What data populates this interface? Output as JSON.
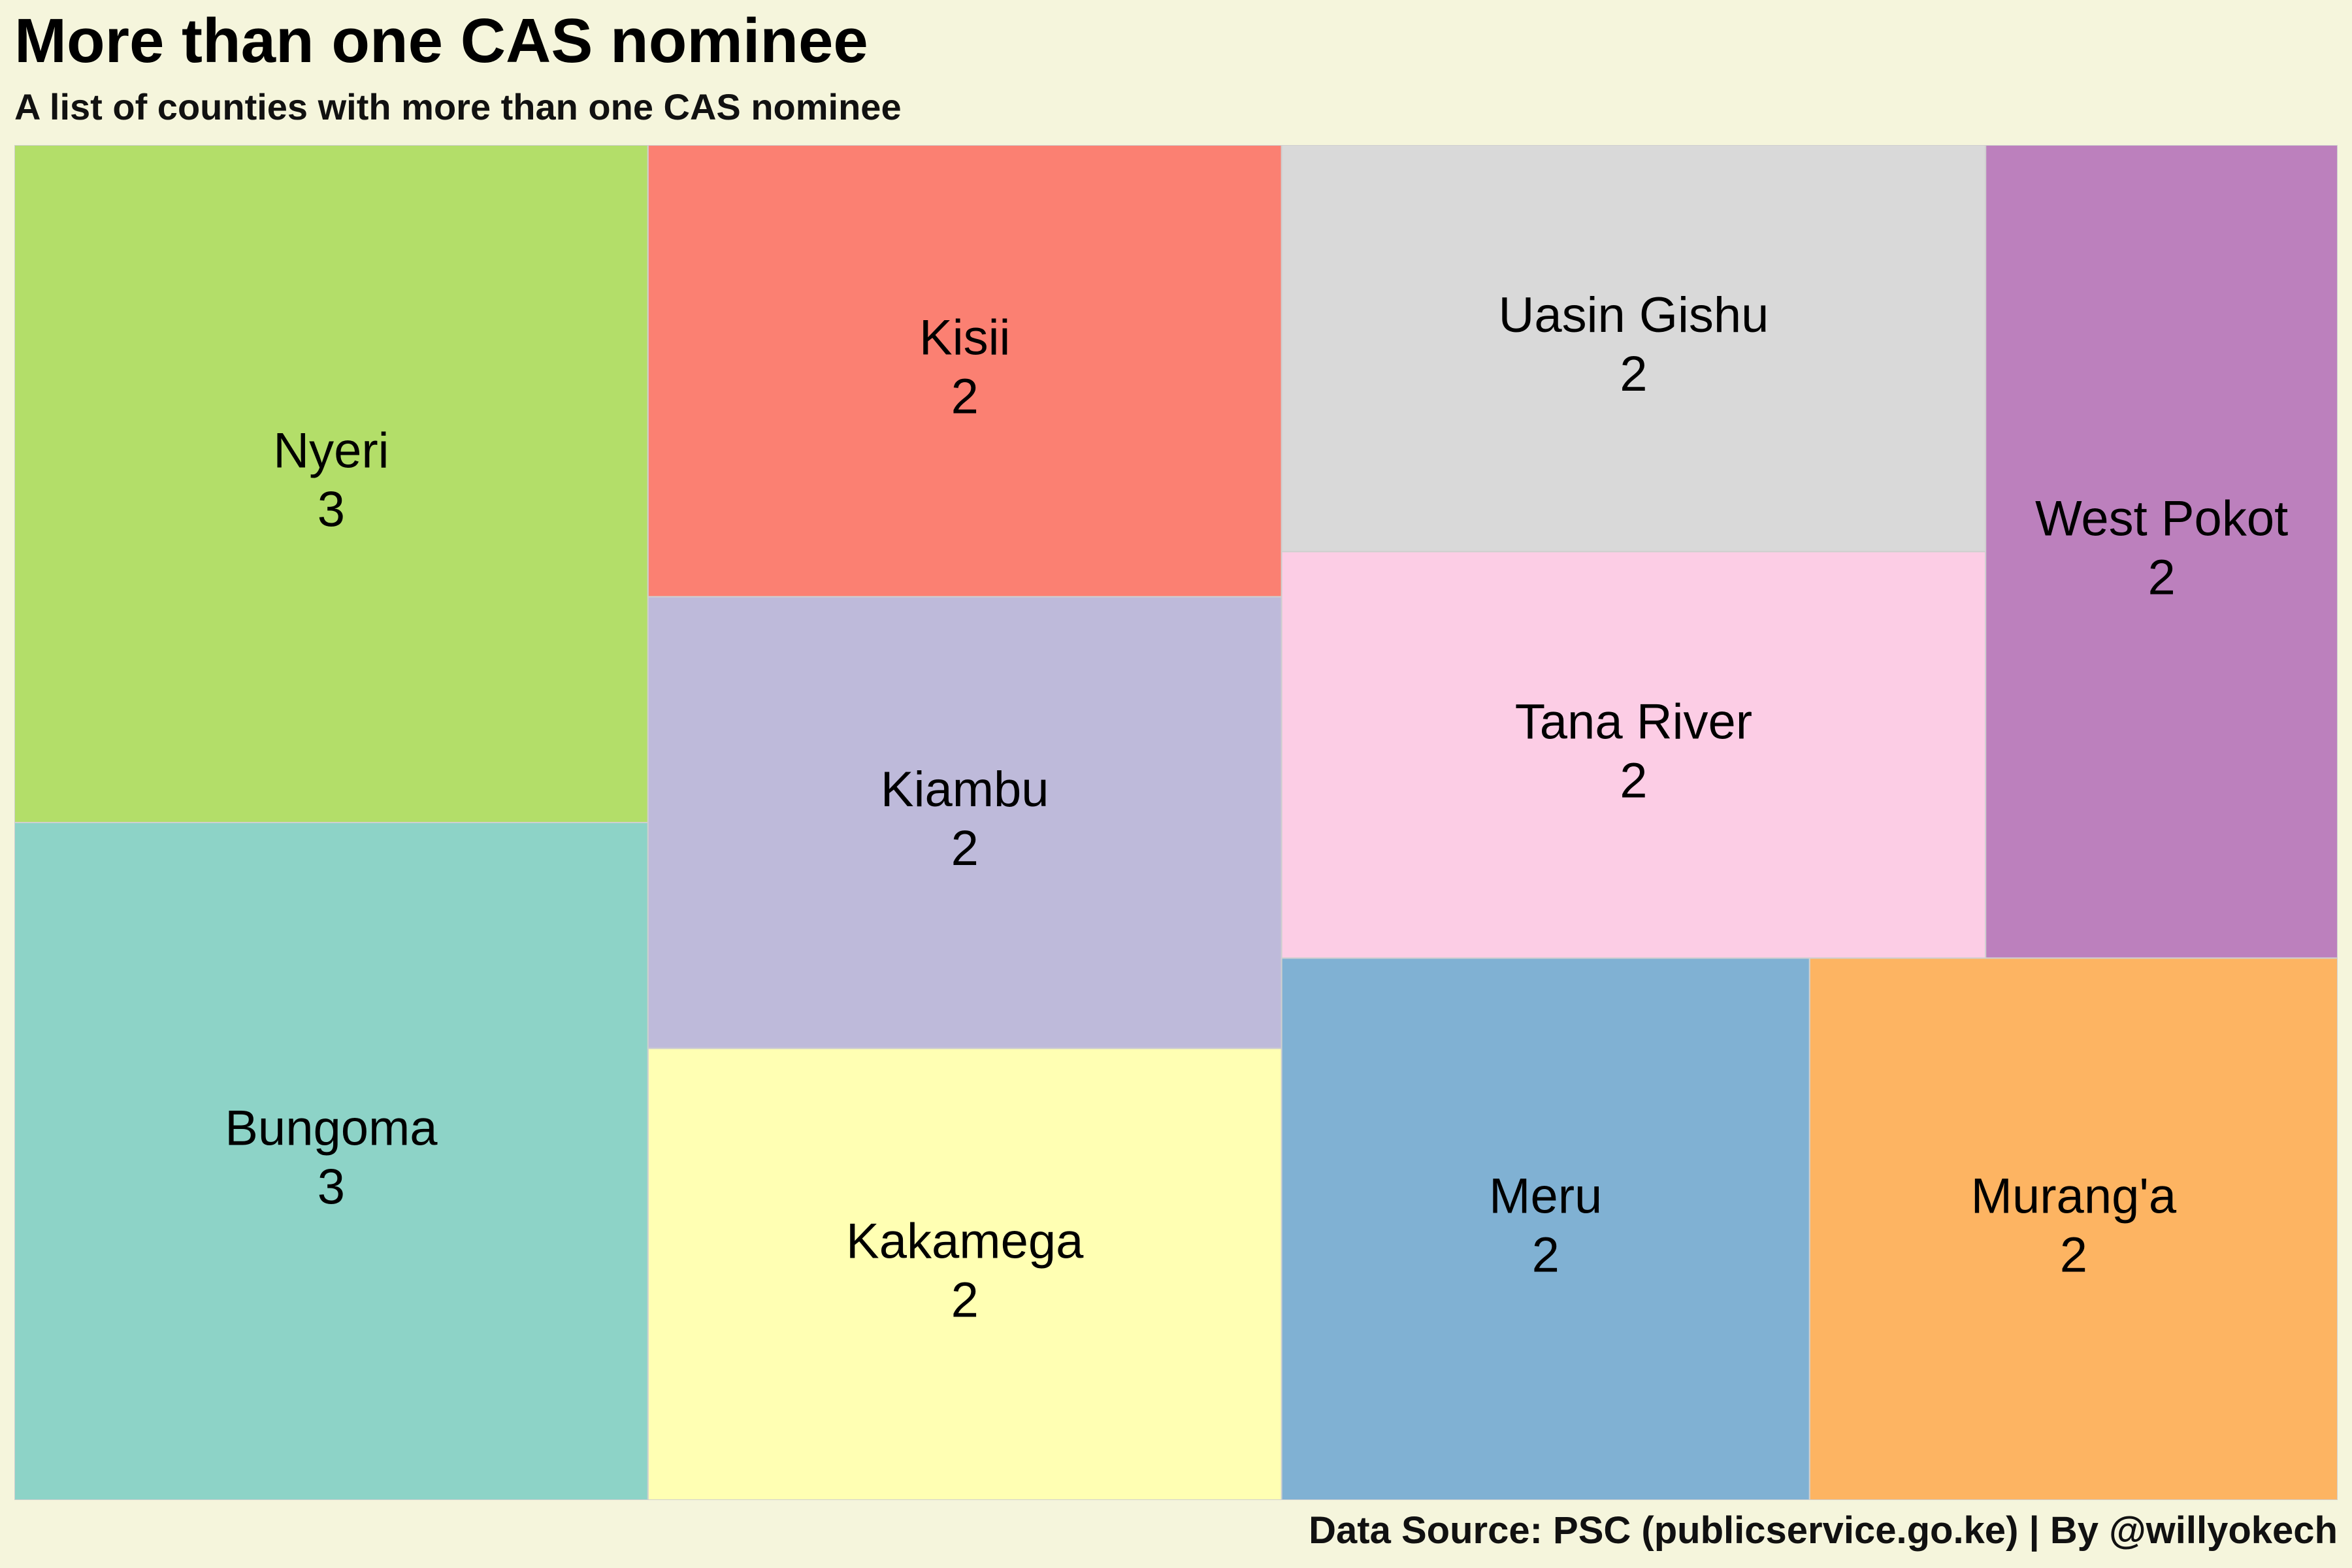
{
  "title": "More than one CAS nominee",
  "subtitle": "A list of counties with more than one CAS nominee",
  "caption": "Data Source: PSC (publicservice.go.ke) | By @willyokech",
  "chart_data": {
    "type": "treemap",
    "title": "More than one CAS nominee",
    "subtitle": "A list of counties with more than one CAS nominee",
    "caption": "Data Source: PSC (publicservice.go.ke) | By @willyokech",
    "items": [
      {
        "label": "Bungoma",
        "value": 3,
        "color": "#8dd3c7"
      },
      {
        "label": "Nyeri",
        "value": 3,
        "color": "#b3de69"
      },
      {
        "label": "Kakamega",
        "value": 2,
        "color": "#ffffb3"
      },
      {
        "label": "Kiambu",
        "value": 2,
        "color": "#bebada"
      },
      {
        "label": "Kisii",
        "value": 2,
        "color": "#fb8072"
      },
      {
        "label": "Meru",
        "value": 2,
        "color": "#80b1d3"
      },
      {
        "label": "Murang'a",
        "value": 2,
        "color": "#fdb462"
      },
      {
        "label": "Tana River",
        "value": 2,
        "color": "#fccde5"
      },
      {
        "label": "Uasin Gishu",
        "value": 2,
        "color": "#d9d9d9"
      },
      {
        "label": "West Pokot",
        "value": 2,
        "color": "#bc80bd"
      }
    ]
  }
}
